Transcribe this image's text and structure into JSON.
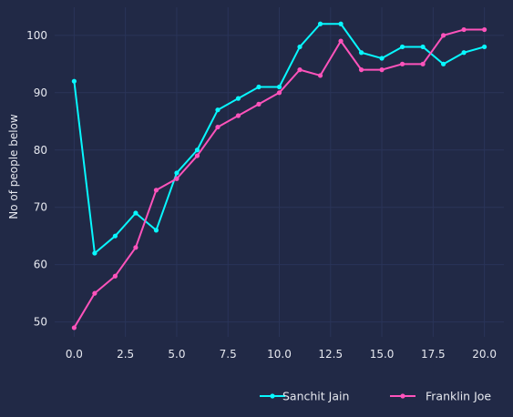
{
  "chart_data": {
    "type": "line",
    "title": "",
    "xlabel": "",
    "ylabel": "No of people below",
    "xlim": [
      -0.95,
      20.95
    ],
    "ylim": [
      47.4,
      104.9
    ],
    "xticks": [
      0.0,
      2.5,
      5.0,
      7.5,
      10.0,
      12.5,
      15.0,
      17.5,
      20.0
    ],
    "xtick_labels": [
      "0.0",
      "2.5",
      "5.0",
      "7.5",
      "10.0",
      "12.5",
      "15.0",
      "17.5",
      "20.0"
    ],
    "yticks": [
      50,
      60,
      70,
      80,
      90,
      100
    ],
    "ytick_labels": [
      "50",
      "60",
      "70",
      "80",
      "90",
      "100"
    ],
    "grid": true,
    "legend": "bottom-right, outside plot, horizontal",
    "x": [
      0,
      1,
      2,
      3,
      4,
      5,
      6,
      7,
      8,
      9,
      10,
      11,
      12,
      13,
      14,
      15,
      16,
      17,
      18,
      19,
      20
    ],
    "series": [
      {
        "name": "Sanchit Jain",
        "color": "#08F7FE",
        "values": [
          92,
          62,
          65,
          69,
          66,
          76,
          80,
          87,
          89,
          91,
          91,
          98,
          102,
          102,
          97,
          96,
          98,
          98,
          95,
          97,
          98
        ]
      },
      {
        "name": "Franklin Joe",
        "color": "#FE53BB",
        "values": [
          49,
          55,
          58,
          63,
          73,
          75,
          79,
          84,
          86,
          88,
          90,
          94,
          93,
          99,
          94,
          94,
          95,
          95,
          100,
          101,
          101
        ]
      }
    ]
  },
  "colors": {
    "background": "#212946",
    "grid": "#2A3459",
    "text": "#e6e8ef"
  }
}
